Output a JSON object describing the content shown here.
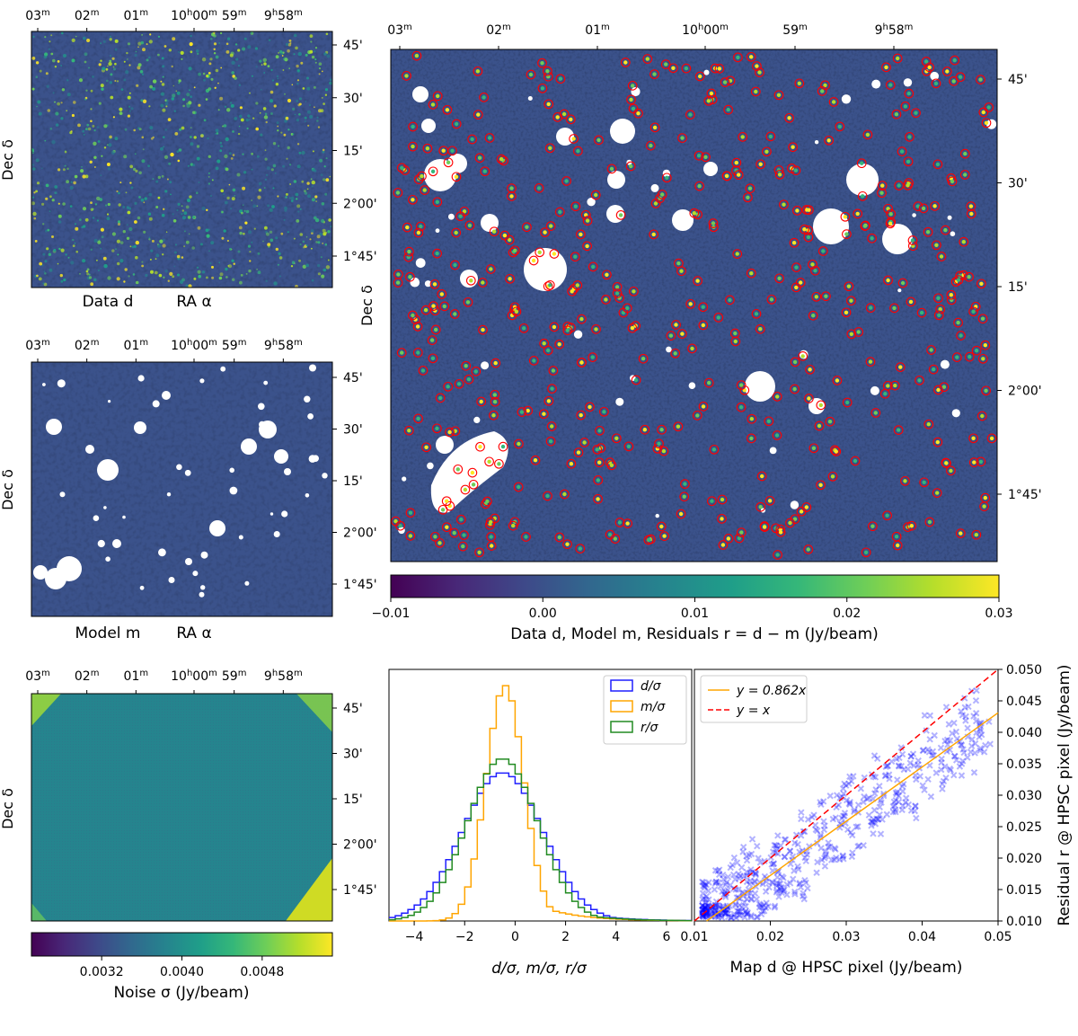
{
  "chart_data": [
    {
      "type": "heatmap",
      "panel": "data-map",
      "xlabel": "RA α",
      "ylabel": "Dec δ",
      "sublabel": "Data d",
      "ra_ticks": [
        "03m",
        "02m",
        "01m",
        "10h00m",
        "59m",
        "9h58m"
      ],
      "dec_ticks": [
        "45'",
        "30'",
        "15'",
        "2°00'",
        "1°45'"
      ],
      "colormap": "viridis",
      "color_range": [
        -0.01,
        0.03
      ]
    },
    {
      "type": "heatmap",
      "panel": "model-map",
      "xlabel": "RA α",
      "ylabel": "Dec δ",
      "sublabel": "Model m",
      "ra_ticks": [
        "03m",
        "02m",
        "01m",
        "10h00m",
        "59m",
        "9h58m"
      ],
      "dec_ticks": [
        "45'",
        "30'",
        "15'",
        "2°00'",
        "1°45'"
      ],
      "colormap": "viridis",
      "masked_sources": true
    },
    {
      "type": "heatmap",
      "panel": "residual-map",
      "ylabel": "Dec δ",
      "ra_ticks": [
        "03m",
        "02m",
        "01m",
        "10h00m",
        "59m",
        "9h58m"
      ],
      "dec_ticks": [
        "45'",
        "30'",
        "15'",
        "2°00'",
        "1°45'"
      ],
      "colormap": "viridis",
      "source_markers": "red circles",
      "colorbar": {
        "label": "Data d, Model m, Residuals r = d − m (Jy/beam)",
        "ticks": [
          -0.01,
          0.0,
          0.01,
          0.02,
          0.03
        ],
        "tick_labels": [
          "−0.01",
          "0.00",
          "0.01",
          "0.02",
          "0.03"
        ]
      }
    },
    {
      "type": "heatmap",
      "panel": "noise-map",
      "ylabel": "Dec δ",
      "ra_ticks": [
        "03m",
        "02m",
        "01m",
        "10h00m",
        "59m",
        "9h58m"
      ],
      "dec_ticks": [
        "45'",
        "30'",
        "15'",
        "2°00'",
        "1°45'"
      ],
      "colormap": "viridis",
      "colorbar": {
        "label": "Noise σ (Jy/beam)",
        "ticks": [
          0.0032,
          0.004,
          0.0048
        ],
        "tick_labels": [
          "0.0032",
          "0.0040",
          "0.0048"
        ],
        "range": [
          0.0025,
          0.0055
        ]
      }
    },
    {
      "type": "line",
      "panel": "histogram",
      "xlabel": "d/σ, m/σ, r/σ",
      "xlim": [
        -5,
        7
      ],
      "xticks": [
        -4,
        -2,
        0,
        2,
        4,
        6
      ],
      "legend_position": "top-right",
      "series": [
        {
          "name": "d/σ",
          "color": "#1f1fff",
          "mean": -0.5,
          "sigma": 1.6,
          "tail": 0.9,
          "peak": 0.63
        },
        {
          "name": "m/σ",
          "color": "#ffa500",
          "mean": -0.4,
          "sigma": 0.75,
          "tail": 0.35,
          "peak": 1.0
        },
        {
          "name": "r/σ",
          "color": "#228b22",
          "mean": -0.5,
          "sigma": 1.4,
          "tail": 0.7,
          "peak": 0.69
        }
      ]
    },
    {
      "type": "scatter",
      "panel": "pixel-scatter",
      "xlabel": "Map d @ HPSC pixel (Jy/beam)",
      "ylabel": "Residual r @ HPSC pixel (Jy/beam)",
      "xlim": [
        0.01,
        0.05
      ],
      "ylim": [
        0.01,
        0.05
      ],
      "xticks": [
        0.01,
        0.02,
        0.03,
        0.04,
        0.05
      ],
      "xtick_labels": [
        "0.01",
        "0.02",
        "0.03",
        "0.04",
        "0.05"
      ],
      "yticks": [
        0.01,
        0.015,
        0.02,
        0.025,
        0.03,
        0.035,
        0.04,
        0.045,
        0.05
      ],
      "ytick_labels": [
        "0.010",
        "0.015",
        "0.020",
        "0.025",
        "0.030",
        "0.035",
        "0.040",
        "0.045",
        "0.050"
      ],
      "legend_position": "top-left",
      "fit_lines": [
        {
          "label": "y = 0.862x",
          "slope": 0.862,
          "color": "#ffa500",
          "style": "solid"
        },
        {
          "label": "y = x",
          "slope": 1.0,
          "color": "#ff0000",
          "style": "dashed"
        }
      ],
      "marker_color": "#0000ff",
      "marker": "x"
    }
  ],
  "colors": {
    "accent_red": "#ff0000",
    "viridis": [
      "#440154",
      "#482878",
      "#3e4989",
      "#31688e",
      "#26828e",
      "#1f9e89",
      "#35b779",
      "#6ece58",
      "#b5de2b",
      "#fde725"
    ]
  }
}
